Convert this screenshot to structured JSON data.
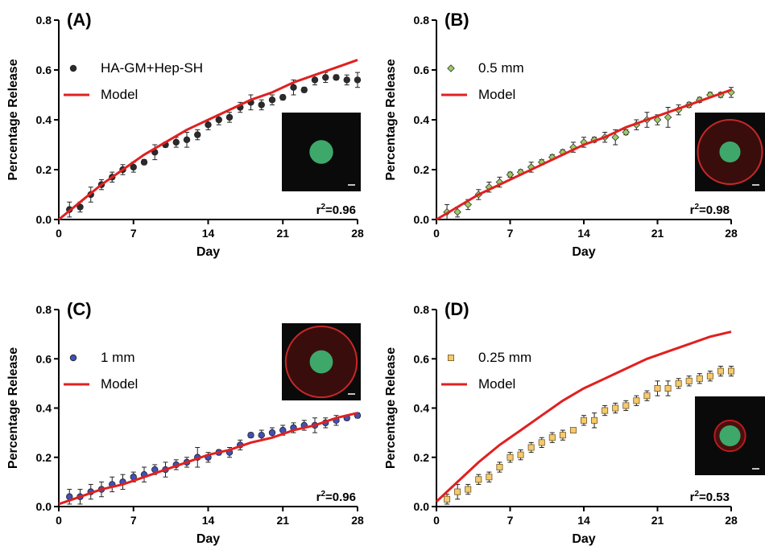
{
  "chart_data": [
    {
      "type": "scatter",
      "panel_label": "(A)",
      "xlabel": "Day",
      "ylabel": "Percentage Release",
      "xlim": [
        0,
        28
      ],
      "ylim": [
        0,
        0.8
      ],
      "xticks": [
        "0",
        "7",
        "14",
        "21",
        "28"
      ],
      "yticks": [
        "0.0",
        "0.2",
        "0.4",
        "0.6",
        "0.8"
      ],
      "r2": "=0.96",
      "r2_base": "r",
      "r2_sup": "2",
      "legend_placement": "top-left",
      "series": [
        {
          "name": "HA-GM+Hep-SH",
          "kind": "points",
          "marker": "circle",
          "color": "#2b2b2b",
          "x": [
            1,
            2,
            3,
            4,
            5,
            6,
            7,
            8,
            9,
            10,
            11,
            12,
            13,
            14,
            15,
            16,
            17,
            18,
            19,
            20,
            21,
            22,
            23,
            24,
            25,
            26,
            27,
            28
          ],
          "y": [
            0.04,
            0.05,
            0.1,
            0.14,
            0.17,
            0.2,
            0.21,
            0.23,
            0.27,
            0.3,
            0.31,
            0.32,
            0.34,
            0.38,
            0.4,
            0.41,
            0.45,
            0.47,
            0.46,
            0.48,
            0.49,
            0.53,
            0.52,
            0.56,
            0.57,
            0.57,
            0.56,
            0.56
          ],
          "err": [
            0.03,
            0.02,
            0.03,
            0.02,
            0.02,
            0.02,
            0.02,
            0.01,
            0.03,
            0.01,
            0.02,
            0.03,
            0.02,
            0.02,
            0.02,
            0.02,
            0.02,
            0.03,
            0.02,
            0.02,
            0.01,
            0.03,
            0.01,
            0.02,
            0.02,
            0.01,
            0.02,
            0.03
          ]
        },
        {
          "name": "Model",
          "kind": "line",
          "color": "#e02020",
          "x": [
            0,
            2,
            4,
            6,
            8,
            10,
            12,
            14,
            16,
            18,
            20,
            22,
            24,
            26,
            28
          ],
          "y": [
            0.0,
            0.07,
            0.14,
            0.2,
            0.26,
            0.31,
            0.36,
            0.4,
            0.44,
            0.48,
            0.51,
            0.55,
            0.58,
            0.61,
            0.64
          ]
        }
      ]
    },
    {
      "type": "scatter",
      "panel_label": "(B)",
      "xlabel": "Day",
      "ylabel": "Percentage Release",
      "xlim": [
        0,
        28
      ],
      "ylim": [
        0,
        0.8
      ],
      "xticks": [
        "0",
        "7",
        "14",
        "21",
        "28"
      ],
      "yticks": [
        "0.0",
        "0.2",
        "0.4",
        "0.6",
        "0.8"
      ],
      "r2": "=0.98",
      "r2_base": "r",
      "r2_sup": "2",
      "legend_placement": "top-left",
      "series": [
        {
          "name": "0.5 mm",
          "kind": "points",
          "marker": "diamond",
          "color": "#9ccc65",
          "x": [
            1,
            2,
            3,
            4,
            5,
            6,
            7,
            8,
            9,
            10,
            11,
            12,
            13,
            14,
            15,
            16,
            17,
            18,
            19,
            20,
            21,
            22,
            23,
            24,
            25,
            26,
            27,
            28
          ],
          "y": [
            0.03,
            0.03,
            0.06,
            0.1,
            0.13,
            0.15,
            0.18,
            0.19,
            0.21,
            0.23,
            0.25,
            0.27,
            0.29,
            0.31,
            0.32,
            0.33,
            0.33,
            0.35,
            0.38,
            0.4,
            0.4,
            0.41,
            0.44,
            0.46,
            0.48,
            0.5,
            0.5,
            0.51
          ],
          "err": [
            0.03,
            0.02,
            0.02,
            0.02,
            0.02,
            0.02,
            0.01,
            0.01,
            0.02,
            0.01,
            0.01,
            0.01,
            0.02,
            0.02,
            0.01,
            0.02,
            0.03,
            0.01,
            0.02,
            0.03,
            0.02,
            0.04,
            0.02,
            0.01,
            0.01,
            0.01,
            0.01,
            0.02
          ]
        },
        {
          "name": "Model",
          "kind": "line",
          "color": "#e02020",
          "x": [
            0,
            2,
            4,
            6,
            8,
            10,
            12,
            14,
            16,
            18,
            20,
            22,
            24,
            26,
            28
          ],
          "y": [
            0.0,
            0.05,
            0.1,
            0.14,
            0.18,
            0.22,
            0.26,
            0.3,
            0.33,
            0.37,
            0.4,
            0.43,
            0.46,
            0.49,
            0.52
          ]
        }
      ]
    },
    {
      "type": "scatter",
      "panel_label": "(C)",
      "xlabel": "Day",
      "ylabel": "Percentage Release",
      "xlim": [
        0,
        28
      ],
      "ylim": [
        0,
        0.8
      ],
      "xticks": [
        "0",
        "7",
        "14",
        "21",
        "28"
      ],
      "yticks": [
        "0.0",
        "0.2",
        "0.4",
        "0.6",
        "0.8"
      ],
      "r2": "=0.96",
      "r2_base": "r",
      "r2_sup": "2",
      "legend_placement": "top-left",
      "series": [
        {
          "name": "1 mm",
          "kind": "points",
          "marker": "circle",
          "color": "#3f51b5",
          "x": [
            1,
            2,
            3,
            4,
            5,
            6,
            7,
            8,
            9,
            10,
            11,
            12,
            13,
            14,
            15,
            16,
            17,
            18,
            19,
            20,
            21,
            22,
            23,
            24,
            25,
            26,
            27,
            28
          ],
          "y": [
            0.04,
            0.04,
            0.06,
            0.07,
            0.09,
            0.1,
            0.12,
            0.13,
            0.15,
            0.15,
            0.17,
            0.18,
            0.2,
            0.2,
            0.22,
            0.22,
            0.25,
            0.29,
            0.29,
            0.3,
            0.31,
            0.32,
            0.33,
            0.33,
            0.34,
            0.35,
            0.36,
            0.37
          ],
          "err": [
            0.03,
            0.03,
            0.03,
            0.03,
            0.03,
            0.03,
            0.02,
            0.03,
            0.02,
            0.03,
            0.02,
            0.02,
            0.04,
            0.02,
            0.01,
            0.02,
            0.02,
            0.01,
            0.02,
            0.02,
            0.02,
            0.02,
            0.02,
            0.03,
            0.02,
            0.02,
            0.01,
            0.01
          ]
        },
        {
          "name": "Model",
          "kind": "line",
          "color": "#e02020",
          "x": [
            0,
            2,
            4,
            6,
            8,
            10,
            12,
            14,
            16,
            18,
            20,
            22,
            24,
            26,
            28
          ],
          "y": [
            0.01,
            0.04,
            0.07,
            0.09,
            0.12,
            0.15,
            0.18,
            0.21,
            0.23,
            0.26,
            0.28,
            0.31,
            0.33,
            0.36,
            0.38
          ]
        }
      ]
    },
    {
      "type": "scatter",
      "panel_label": "(D)",
      "xlabel": "Day",
      "ylabel": "Percentage Release",
      "xlim": [
        0,
        28
      ],
      "ylim": [
        0,
        0.8
      ],
      "xticks": [
        "0",
        "7",
        "14",
        "21",
        "28"
      ],
      "yticks": [
        "0.0",
        "0.2",
        "0.4",
        "0.6",
        "0.8"
      ],
      "r2": "=0.53",
      "r2_base": "r",
      "r2_sup": "2",
      "legend_placement": "top-left",
      "series": [
        {
          "name": "0.25 mm",
          "kind": "points",
          "marker": "square",
          "color": "#f7c96b",
          "x": [
            1,
            2,
            3,
            4,
            5,
            6,
            7,
            8,
            9,
            10,
            11,
            12,
            13,
            14,
            15,
            16,
            17,
            18,
            19,
            20,
            21,
            22,
            23,
            24,
            25,
            26,
            27,
            28
          ],
          "y": [
            0.03,
            0.06,
            0.07,
            0.11,
            0.12,
            0.16,
            0.2,
            0.21,
            0.24,
            0.26,
            0.28,
            0.29,
            0.31,
            0.35,
            0.35,
            0.39,
            0.4,
            0.41,
            0.43,
            0.45,
            0.48,
            0.48,
            0.5,
            0.51,
            0.52,
            0.53,
            0.55,
            0.55
          ],
          "err": [
            0.02,
            0.03,
            0.02,
            0.02,
            0.02,
            0.02,
            0.02,
            0.02,
            0.02,
            0.02,
            0.02,
            0.02,
            0.01,
            0.02,
            0.03,
            0.02,
            0.02,
            0.02,
            0.02,
            0.02,
            0.03,
            0.03,
            0.02,
            0.02,
            0.02,
            0.02,
            0.02,
            0.02
          ]
        },
        {
          "name": "Model",
          "kind": "line",
          "color": "#e02020",
          "x": [
            0,
            2,
            4,
            6,
            8,
            10,
            12,
            14,
            16,
            18,
            20,
            22,
            24,
            26,
            28
          ],
          "y": [
            0.02,
            0.1,
            0.18,
            0.25,
            0.31,
            0.37,
            0.43,
            0.48,
            0.52,
            0.56,
            0.6,
            0.63,
            0.66,
            0.69,
            0.71
          ]
        }
      ]
    }
  ]
}
